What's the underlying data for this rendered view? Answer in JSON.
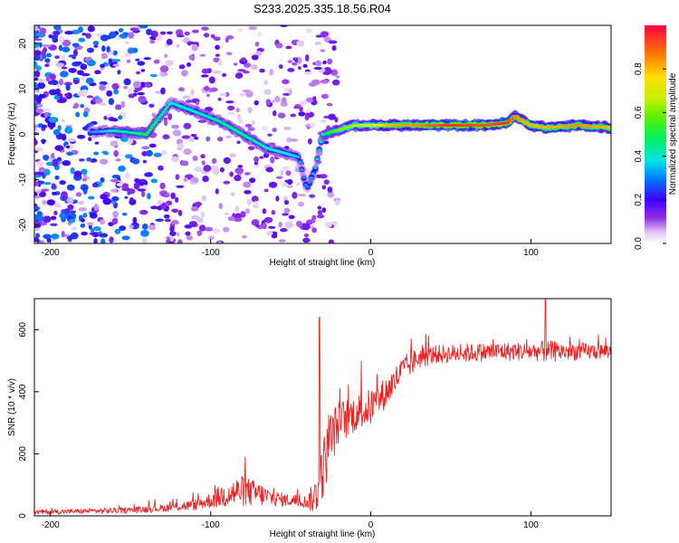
{
  "chart_data": [
    {
      "type": "heatmap",
      "title": "S233.2025.335.18.56.R04",
      "xlabel": "Height of straight line (km)",
      "ylabel": "Frequency (Hz)",
      "xlim": [
        -210,
        150
      ],
      "ylim": [
        -24,
        24
      ],
      "xticks": [
        -200,
        -100,
        0,
        100
      ],
      "yticks": [
        -20,
        -10,
        0,
        10,
        20
      ],
      "colorbar": {
        "label": "Normalized spectral amplitude",
        "range": [
          0.0,
          1.0
        ],
        "ticks": [
          0.0,
          0.2,
          0.4,
          0.6,
          0.8
        ],
        "tick_labels": [
          "0.0",
          "0.2",
          "0.4",
          "0.6",
          "0.8"
        ]
      },
      "ridge": {
        "description_points_height_km": [
          -175,
          -160,
          -140,
          -125,
          -110,
          -95,
          -80,
          -65,
          -55,
          -45,
          -40,
          -35,
          -30,
          -20,
          -10,
          0,
          10,
          30,
          50,
          70,
          85,
          90,
          100,
          110,
          130,
          150
        ],
        "description_points_freq_hz": [
          0.5,
          0.8,
          0,
          7,
          5,
          3,
          0,
          -3,
          -4,
          -5,
          -12,
          -8,
          0,
          1,
          2,
          2,
          2,
          2,
          2,
          2,
          2.5,
          4,
          2,
          1.5,
          2,
          1.5
        ],
        "description_points_amplitude": [
          0.3,
          0.4,
          0.5,
          0.4,
          0.4,
          0.45,
          0.45,
          0.4,
          0.4,
          0.35,
          0.3,
          0.35,
          0.45,
          0.6,
          0.65,
          0.7,
          0.8,
          0.85,
          0.95,
          0.9,
          0.95,
          0.85,
          0.8,
          0.8,
          0.85,
          0.8
        ]
      }
    },
    {
      "type": "line",
      "title": "",
      "xlabel": "Height of straight line (km)",
      "ylabel": "SNR (10 * v/v)",
      "xlim": [
        -210,
        150
      ],
      "ylim": [
        0,
        700
      ],
      "xticks": [
        -200,
        -100,
        0,
        100
      ],
      "yticks": [
        0,
        200,
        400,
        600
      ],
      "series": [
        {
          "name": "SNR",
          "color": "#ee2222",
          "envelope_x_km": [
            -210,
            -180,
            -150,
            -130,
            -110,
            -100,
            -90,
            -80,
            -70,
            -60,
            -50,
            -40,
            -35,
            -30,
            -25,
            -20,
            -10,
            0,
            10,
            20,
            30,
            40,
            60,
            80,
            100,
            110,
            120,
            150
          ],
          "envelope_mean": [
            12,
            15,
            18,
            25,
            35,
            50,
            70,
            80,
            70,
            55,
            50,
            45,
            60,
            150,
            250,
            300,
            330,
            350,
            400,
            470,
            510,
            520,
            525,
            530,
            530,
            530,
            530,
            530
          ],
          "envelope_spread": [
            8,
            8,
            10,
            12,
            18,
            25,
            45,
            50,
            40,
            25,
            20,
            20,
            60,
            100,
            90,
            70,
            60,
            60,
            50,
            45,
            35,
            30,
            30,
            30,
            30,
            35,
            30,
            25
          ],
          "spikes_x_km": [
            -32,
            109
          ],
          "spikes_y": [
            640,
            700
          ]
        }
      ]
    }
  ]
}
